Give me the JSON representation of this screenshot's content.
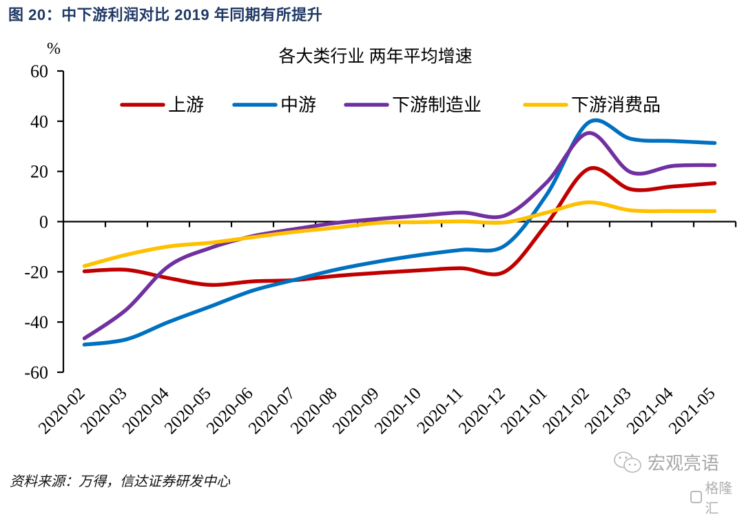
{
  "figure": {
    "title": "图 20：中下游利润对比 2019 年同期有所提升",
    "source": "资料来源：万得，信达证券研发中心",
    "watermark_text": "宏观亮语",
    "watermark_logo_text": "格隆汇"
  },
  "chart_data": {
    "type": "line",
    "title": "各大类行业 两年平均增速",
    "ylabel": "%",
    "xlabel": "",
    "ylim": [
      -60,
      60
    ],
    "yticks": [
      60,
      40,
      20,
      0,
      -20,
      -40,
      -60
    ],
    "grid": false,
    "legend_position": "top",
    "categories": [
      "2020-02",
      "2020-03",
      "2020-04",
      "2020-05",
      "2020-06",
      "2020-07",
      "2020-08",
      "2020-09",
      "2020-10",
      "2020-11",
      "2020-12",
      "2021-01",
      "2021-02",
      "2021-03",
      "2021-04",
      "2021-05"
    ],
    "series": [
      {
        "name": "上游",
        "color": "#c00000",
        "values": [
          -19.8,
          -19.2,
          -22.5,
          -25.2,
          -23.8,
          -23.3,
          -21.6,
          -20.4,
          -19.4,
          -18.6,
          -20.0,
          -1.0,
          21.0,
          12.9,
          14.0,
          15.3
        ]
      },
      {
        "name": "中游",
        "color": "#0070c0",
        "values": [
          -49.0,
          -46.9,
          -40.0,
          -33.8,
          -27.5,
          -23.2,
          -19.1,
          -15.9,
          -13.3,
          -11.2,
          -9.6,
          10.7,
          39.5,
          33.0,
          32.1,
          31.3
        ]
      },
      {
        "name": "下游制造业",
        "color": "#7030a0",
        "values": [
          -46.5,
          -35.0,
          -17.8,
          -10.5,
          -5.8,
          -3.0,
          -0.5,
          1.1,
          2.4,
          3.6,
          2.4,
          15.6,
          35.3,
          19.7,
          22.2,
          22.5
        ]
      },
      {
        "name": "下游消费品",
        "color": "#ffc000",
        "values": [
          -17.7,
          -13.2,
          -9.9,
          -8.4,
          -6.2,
          -4.1,
          -2.4,
          -0.5,
          -0.2,
          0.1,
          -0.3,
          3.6,
          7.7,
          4.5,
          4.2,
          4.2
        ]
      }
    ]
  }
}
